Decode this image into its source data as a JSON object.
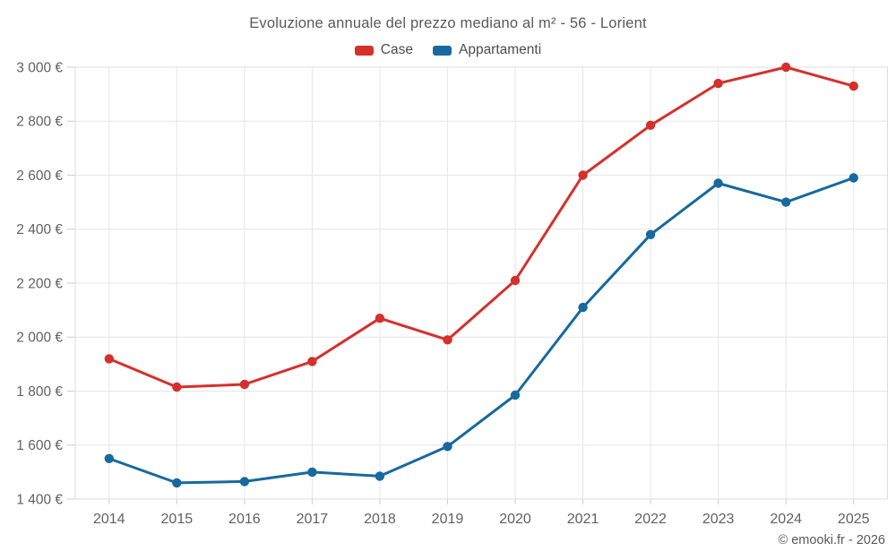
{
  "title": "Evoluzione annuale del prezzo mediano al m² - 56 - Lorient",
  "footer": "© emooki.fr - 2026",
  "legend": {
    "items": [
      {
        "label": "Case",
        "color": "#d6302c"
      },
      {
        "label": "Appartamenti",
        "color": "#17699e"
      }
    ]
  },
  "colors": {
    "case_red": "#d6302c",
    "appartamenti_blue": "#17699e",
    "grid": "#e6e6e6",
    "axis_border": "#dcdcdc",
    "tick": "#cccccc",
    "axis_text": "#616161"
  },
  "chart_data": {
    "type": "line",
    "title": "Evoluzione annuale del prezzo mediano al m² - 56 - Lorient",
    "categories": [
      "2014",
      "2015",
      "2016",
      "2017",
      "2018",
      "2019",
      "2020",
      "2021",
      "2022",
      "2023",
      "2024",
      "2025"
    ],
    "series": [
      {
        "name": "Case",
        "color": "#d6302c",
        "values": [
          1920,
          1815,
          1825,
          1910,
          2070,
          1990,
          2210,
          2600,
          2785,
          2940,
          3000,
          2930
        ]
      },
      {
        "name": "Appartamenti",
        "color": "#17699e",
        "values": [
          1550,
          1460,
          1465,
          1500,
          1485,
          1595,
          1785,
          2110,
          2380,
          2570,
          2500,
          2590
        ]
      }
    ],
    "xlabel": "",
    "ylabel": "",
    "ylim": [
      1400,
      3000
    ],
    "yticks": [
      1400,
      1600,
      1800,
      2000,
      2200,
      2400,
      2600,
      2800,
      3000
    ],
    "ytick_labels": [
      "1 400 €",
      "1 600 €",
      "1 800 €",
      "2 000 €",
      "2 200 €",
      "2 400 €",
      "2 600 €",
      "2 800 €",
      "3 000 €"
    ],
    "grid": true,
    "legend_position": "top"
  }
}
